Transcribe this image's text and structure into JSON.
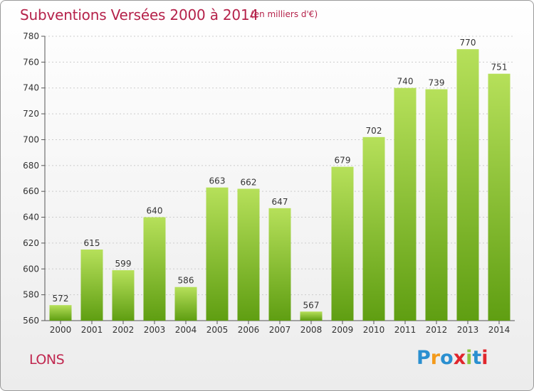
{
  "header": {
    "title": "Subventions Versées 2000 à 2014",
    "subtitle": "(en milliers d'€)"
  },
  "footer": {
    "place": "LONS",
    "logo_letters": [
      "P",
      "r",
      "o",
      "x",
      "i",
      "t",
      "i"
    ],
    "logo_colors": [
      "#2a8fd0",
      "#f39a1b",
      "#2a8fd0",
      "#e0262c",
      "#8dc63f",
      "#2a8fd0",
      "#e0262c"
    ]
  },
  "colors": {
    "bar_light": "#b6e05a",
    "bar_dark": "#5f9e12",
    "axis": "#555555",
    "grid": "#cccccc",
    "text": "#333333"
  },
  "chart_data": {
    "type": "bar",
    "title": "Subventions Versées 2000 à 2014",
    "subtitle": "(en milliers d'€)",
    "categories": [
      "2000",
      "2001",
      "2002",
      "2003",
      "2004",
      "2005",
      "2006",
      "2007",
      "2008",
      "2009",
      "2010",
      "2011",
      "2012",
      "2013",
      "2014"
    ],
    "values": [
      572,
      615,
      599,
      640,
      586,
      663,
      662,
      647,
      567,
      679,
      702,
      740,
      739,
      770,
      751
    ],
    "ylim": [
      560,
      780
    ],
    "yticks": [
      560,
      580,
      600,
      620,
      640,
      660,
      680,
      700,
      720,
      740,
      760,
      780
    ],
    "xlabel": "",
    "ylabel": "",
    "grid": true,
    "legend": "none"
  }
}
